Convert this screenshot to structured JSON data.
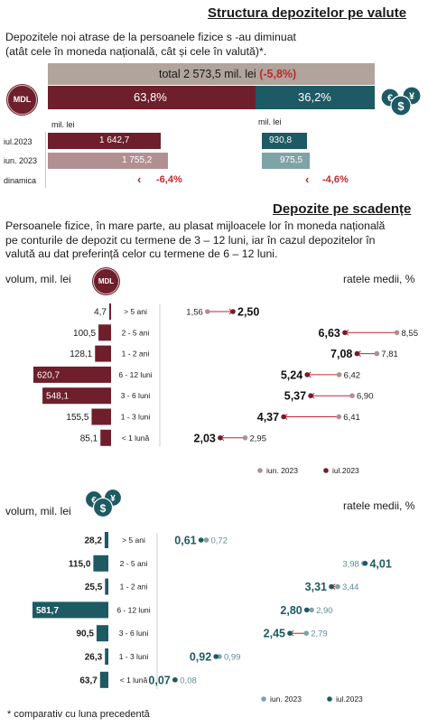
{
  "section1": {
    "title": "Structura depozitelor pe valute",
    "description_line1": "Depozitele noi atrase de la persoanele fizice s -au diminuat",
    "description_line2": "(atât cele în moneda națională, cât și cele în valută)*.",
    "total_label": "total 2 573,5 mil. lei",
    "total_change": "(-5,8%)",
    "mdl_share": "63,8%",
    "fx_share": "36,2%",
    "mdl_badge": "MDL",
    "unit_label_mdl": "mil. lei",
    "unit_label_fx": "mil. lei",
    "row_labels": [
      "iul.2023",
      "iun. 2023",
      "dinamica"
    ],
    "mdl_values": [
      "1 642,7",
      "1 755,2"
    ],
    "fx_values": [
      "930,8",
      "975,5"
    ],
    "mdl_change": "-6,4%",
    "fx_change": "-4,6%"
  },
  "section2": {
    "title": "Depozite pe scadențe",
    "description_line1": "Persoanele fizice, în mare parte, au plasat mijloacele lor în moneda națională",
    "description_line2": "pe conturile de depozit cu termene de 3  – 12 luni, iar în cazul depozitelor în",
    "description_line3": "valută au dat preferință celor cu termene de 6  – 12 luni."
  },
  "chart_data": [
    {
      "type": "bar",
      "currency_badge": "MDL",
      "ylabel_left": "volum, mil. lei",
      "ylabel_right": "ratele medii, %",
      "categories": [
        "> 5 ani",
        "2 - 5 ani",
        "1 - 2 ani",
        "6 - 12 luni",
        "3 - 6 luni",
        "1 - 3 luni",
        "< 1 lună"
      ],
      "volume_labels": [
        "4,7",
        "100,5",
        "128,1",
        "620,7",
        "548,1",
        "155,5",
        "85,1"
      ],
      "volume_values": [
        4.7,
        100.5,
        128.1,
        620.7,
        548.1,
        155.5,
        85.1
      ],
      "rate_jul": [
        2.5,
        6.63,
        7.08,
        5.24,
        5.37,
        4.37,
        2.03
      ],
      "rate_jul_labels": [
        "2,50",
        "6,63",
        "7,08",
        "5,24",
        "5,37",
        "4,37",
        "2,03"
      ],
      "rate_jun": [
        1.56,
        8.55,
        7.81,
        6.42,
        6.9,
        6.41,
        2.95
      ],
      "rate_jun_labels": [
        "1,56",
        "8,55",
        "7,81",
        "6,42",
        "6,90",
        "6,41",
        "2,95"
      ],
      "rate_range": [
        0,
        9
      ],
      "legend": [
        "iun. 2023",
        "iul.2023"
      ],
      "colors": {
        "bar": "#6e1f2b",
        "jul": "#6e1f2b",
        "jun": "#b28f93",
        "arrow": "#c1272d"
      }
    },
    {
      "type": "bar",
      "currency_badge": "€ $ ¥",
      "ylabel_left": "volum, mil. lei",
      "ylabel_right": "ratele medii, %",
      "categories": [
        "> 5 ani",
        "2 - 5 ani",
        "1 - 2 ani",
        "6 - 12 luni",
        "3 - 6 luni",
        "1 - 3 luni",
        "< 1 lună"
      ],
      "volume_labels": [
        "28,2",
        "115,0",
        "25,5",
        "581,7",
        "90,5",
        "26,3",
        "63,7"
      ],
      "volume_values": [
        28.2,
        115.0,
        25.5,
        581.7,
        90.5,
        26.3,
        63.7
      ],
      "rate_jul": [
        0.61,
        4.01,
        3.31,
        2.8,
        2.45,
        0.92,
        0.07
      ],
      "rate_jul_labels": [
        "0,61",
        "4,01",
        "3,31",
        "2,80",
        "2,45",
        "0,92",
        "0,07"
      ],
      "rate_jun": [
        0.72,
        3.98,
        3.44,
        2.9,
        2.79,
        0.99,
        0.08
      ],
      "rate_jun_labels": [
        "0,72",
        "3,98",
        "3,44",
        "2,90",
        "2,79",
        "0,99",
        "0,08"
      ],
      "rate_range": [
        0,
        4.6
      ],
      "legend": [
        "iun. 2023",
        "iul.2023"
      ],
      "colors": {
        "bar": "#1e5a63",
        "jul": "#1e5a63",
        "jun": "#7fa3a6",
        "arrow": "#c1272d"
      }
    }
  ],
  "footnote": "* comparativ cu luna precedentă"
}
